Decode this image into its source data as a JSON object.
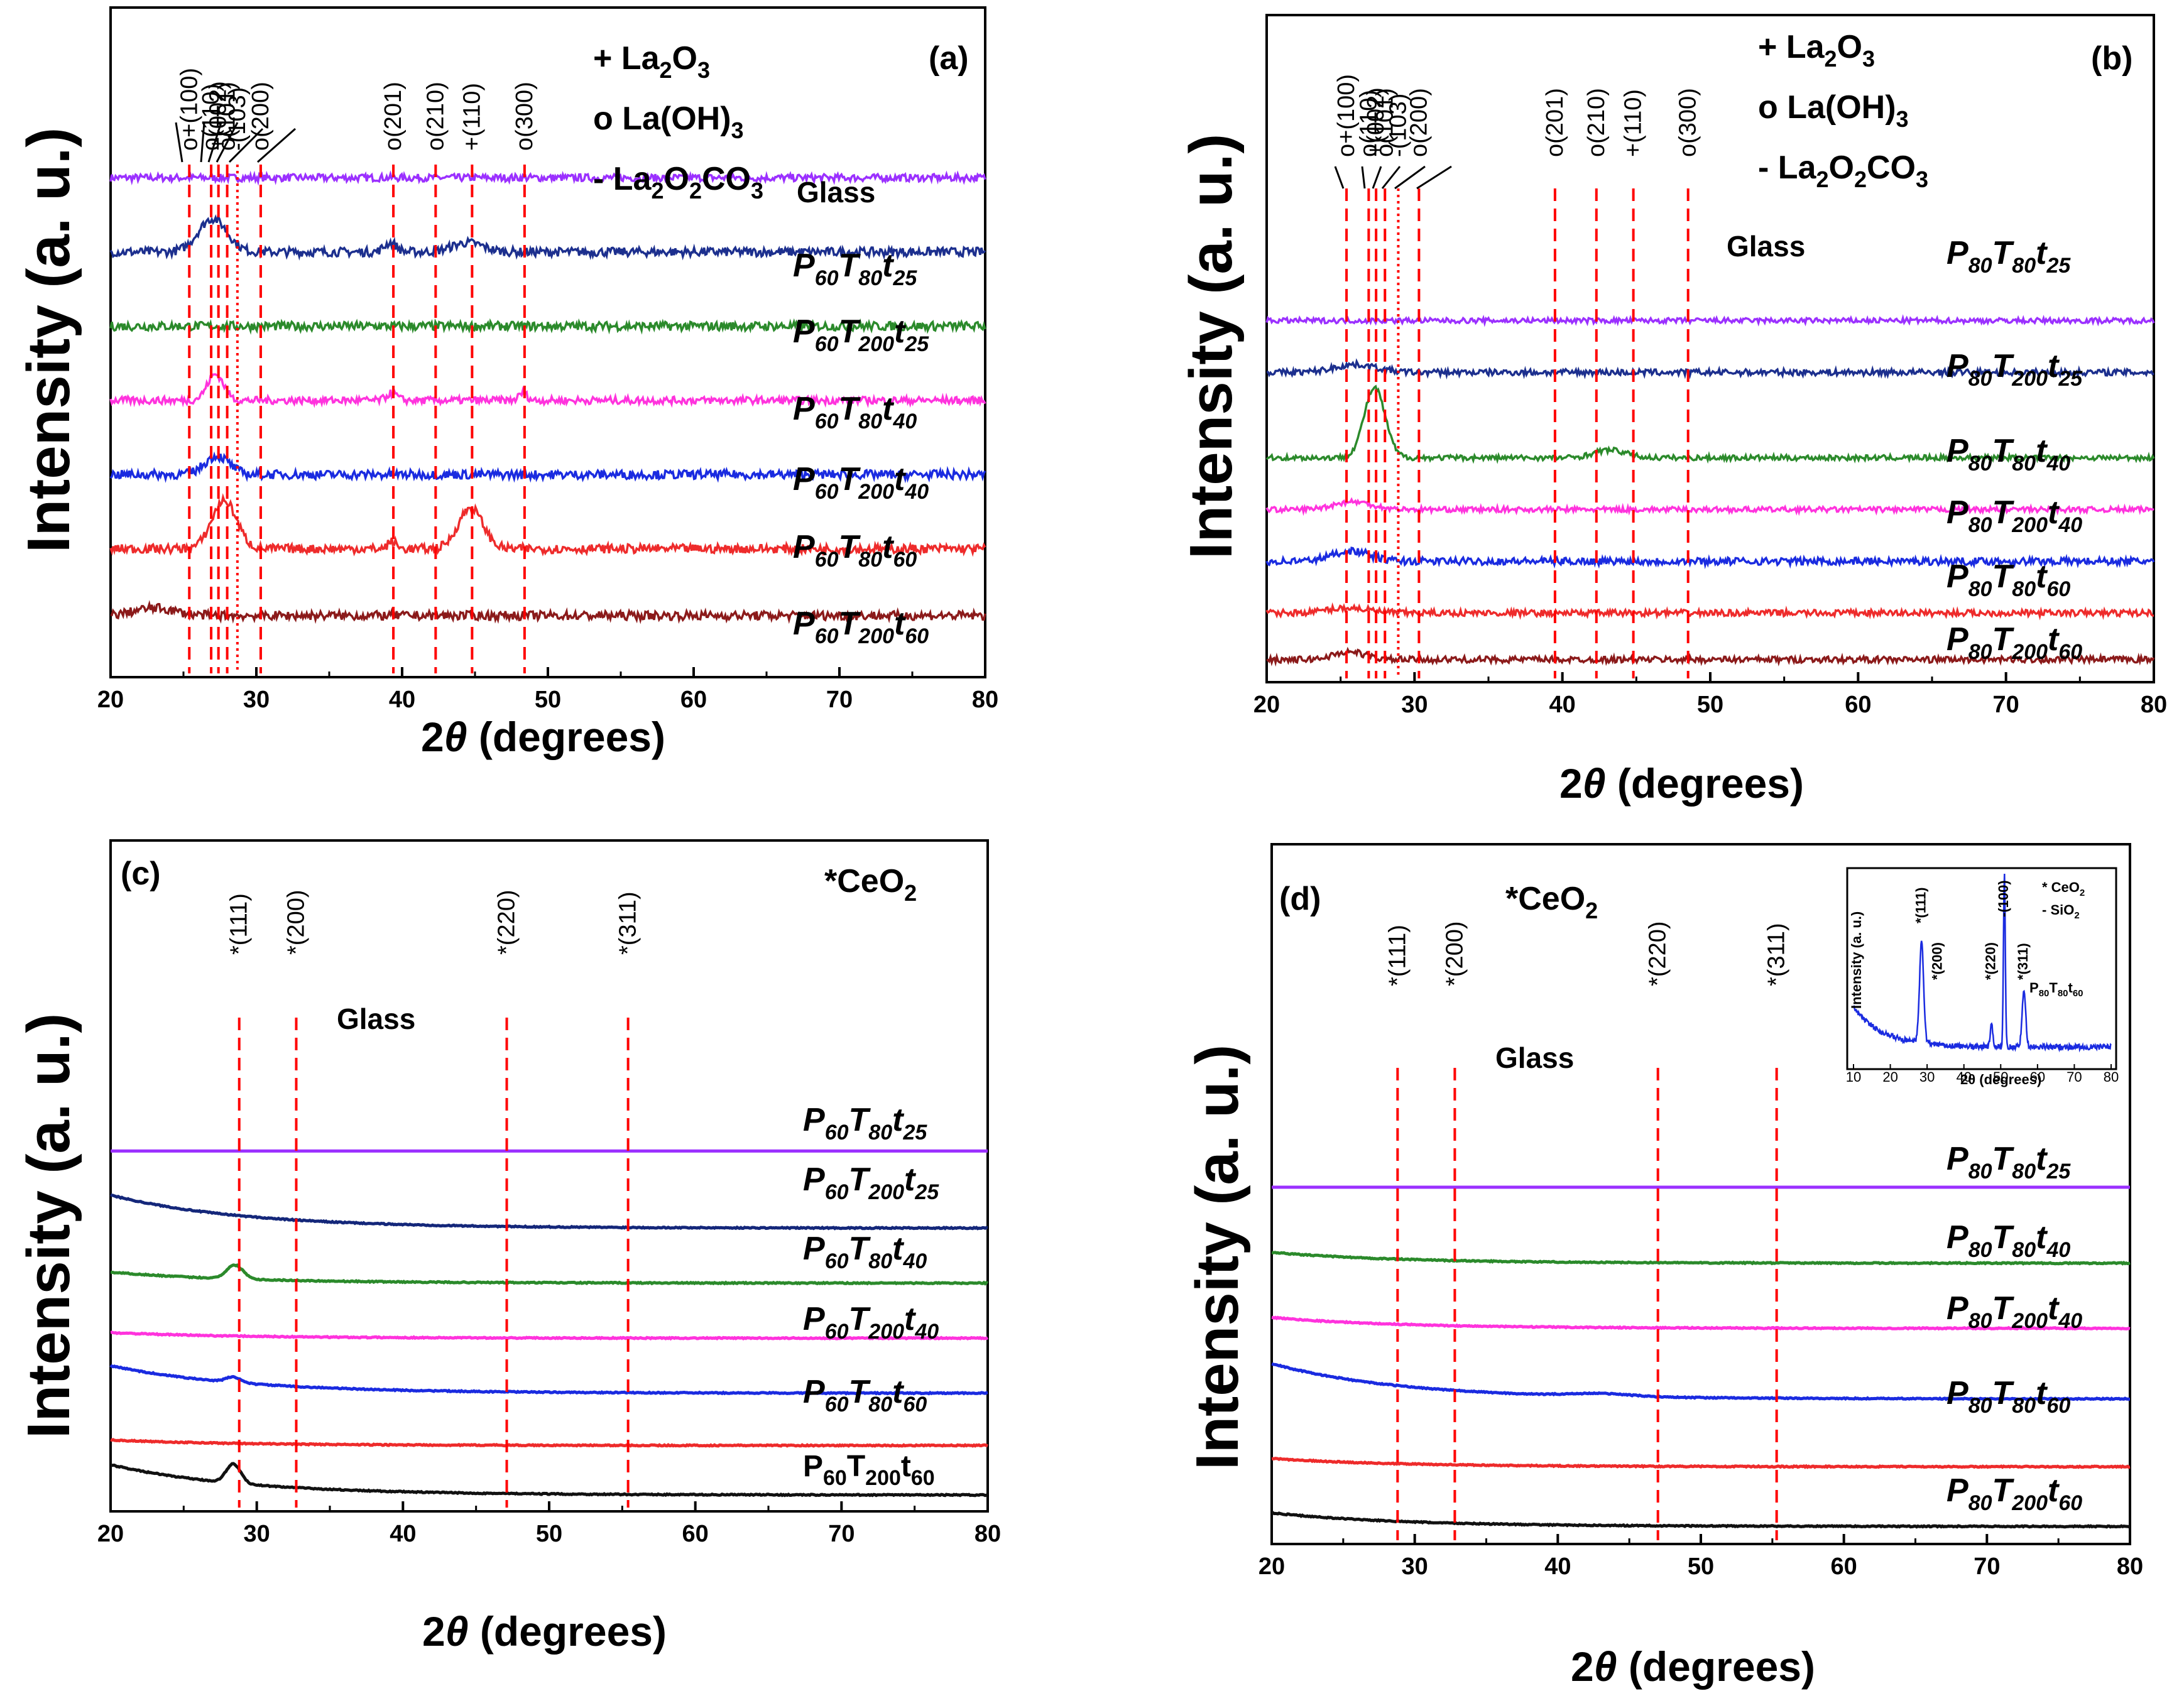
{
  "figure": {
    "y_label": "Intensity (a. u.)",
    "x_label_prefix": "2",
    "x_label_theta": "θ",
    "x_label_suffix": " (degrees)",
    "x_ticks": [
      "20",
      "30",
      "40",
      "50",
      "60",
      "70",
      "80"
    ]
  },
  "chart_data": [
    {
      "id": "a",
      "type": "line",
      "panel_label": "(a)",
      "xlabel": "2θ (degrees)",
      "ylabel": "Intensity (a. u.)",
      "xlim": [
        20,
        80
      ],
      "legend": [
        {
          "sym": "+",
          "text": "La",
          "sub": "2",
          "text2": "O",
          "sub2": "3"
        },
        {
          "sym": "o",
          "text": "La(OH)",
          "sub": "3",
          "text2": "",
          "sub2": ""
        },
        {
          "sym": "-",
          "text": "La",
          "sub": "2",
          "text2": "O",
          "sub2": "2",
          "text3": "CO",
          "sub3": "3"
        }
      ],
      "reference_lines": [
        {
          "x": 25.4,
          "label": "o+(100)",
          "style": "dashed"
        },
        {
          "x": 26.9,
          "label": "o(110)",
          "style": "dashed"
        },
        {
          "x": 27.4,
          "label": "+(002)",
          "style": "dashed"
        },
        {
          "x": 28.0,
          "label": "o(101)",
          "style": "dashed"
        },
        {
          "x": 28.7,
          "label": "-(103)",
          "style": "dotted"
        },
        {
          "x": 30.3,
          "label": "o(200)",
          "style": "dashed"
        },
        {
          "x": 39.4,
          "label": "o(201)",
          "style": "dashed"
        },
        {
          "x": 42.3,
          "label": "o(210)",
          "style": "dashed"
        },
        {
          "x": 44.8,
          "label": "+(110)",
          "style": "dashed"
        },
        {
          "x": 48.4,
          "label": "o(300)",
          "style": "dashed"
        }
      ],
      "series": [
        {
          "name": "Glass",
          "color": "#9b30ff",
          "baseline": 1.0,
          "peaks": [],
          "noise": 0.01,
          "label_parts": [
            "Glass"
          ]
        },
        {
          "name": "P60T80t25",
          "color": "#1c2f8e",
          "baseline": 0.8,
          "peaks": [
            [
              27.0,
              0.09,
              1.4
            ],
            [
              39.2,
              0.025,
              0.6
            ],
            [
              44.5,
              0.025,
              1.5
            ]
          ],
          "noise": 0.012,
          "label_parts": [
            "P",
            "60",
            "T",
            "80",
            "t",
            "25"
          ]
        },
        {
          "name": "P60T200t25",
          "color": "#2b8a2b",
          "baseline": 0.6,
          "peaks": [],
          "noise": 0.012,
          "label_parts": [
            "P",
            "60",
            "T",
            "200",
            "t",
            "25"
          ]
        },
        {
          "name": "P60T80t40",
          "color": "#ff33dd",
          "baseline": 0.4,
          "peaks": [
            [
              27.2,
              0.07,
              0.8
            ],
            [
              39.3,
              0.02,
              0.5
            ],
            [
              48.3,
              0.02,
              0.4
            ]
          ],
          "noise": 0.01,
          "label_parts": [
            "P",
            "60",
            "T",
            "80",
            "t",
            "40"
          ]
        },
        {
          "name": "P60T200t40",
          "color": "#1a2be0",
          "baseline": 0.2,
          "peaks": [
            [
              27.3,
              0.05,
              1.2
            ]
          ],
          "noise": 0.012,
          "label_parts": [
            "P",
            "60",
            "T",
            "200",
            "t",
            "40"
          ]
        },
        {
          "name": "P60T80t60",
          "color": "#ee2b2b",
          "baseline": 0.0,
          "peaks": [
            [
              27.8,
              0.13,
              1.2
            ],
            [
              44.7,
              0.11,
              1.2
            ],
            [
              39.3,
              0.02,
              0.4
            ]
          ],
          "noise": 0.012,
          "label_parts": [
            "P",
            "60",
            "T",
            "80",
            "t",
            "60"
          ]
        },
        {
          "name": "P60T200t60",
          "color": "#8b1a1a",
          "baseline": -0.18,
          "peaks": [
            [
              23.0,
              0.02,
              2.0
            ]
          ],
          "noise": 0.012,
          "label_parts": [
            "P",
            "60",
            "T",
            "200",
            "t",
            "60"
          ]
        }
      ]
    },
    {
      "id": "b",
      "type": "line",
      "panel_label": "(b)",
      "xlabel": "2θ (degrees)",
      "ylabel": "Intensity (a. u.)",
      "xlim": [
        20,
        80
      ],
      "legend": [
        {
          "sym": "+",
          "text": "La",
          "sub": "2",
          "text2": "O",
          "sub2": "3"
        },
        {
          "sym": "o",
          "text": "La(OH)",
          "sub": "3",
          "text2": "",
          "sub2": ""
        },
        {
          "sym": "-",
          "text": "La",
          "sub": "2",
          "text2": "O",
          "sub2": "2",
          "text3": "CO",
          "sub3": "3"
        }
      ],
      "reference_lines": [
        {
          "x": 25.4,
          "label": "o+(100)",
          "style": "dashed"
        },
        {
          "x": 26.9,
          "label": "o(110)",
          "style": "dashed"
        },
        {
          "x": 27.4,
          "label": "+(002)",
          "style": "dashed"
        },
        {
          "x": 28.0,
          "label": "o(101)",
          "style": "dashed"
        },
        {
          "x": 28.9,
          "label": "-(103)",
          "style": "dotted"
        },
        {
          "x": 30.3,
          "label": "o(200)",
          "style": "dashed"
        },
        {
          "x": 39.5,
          "label": "o(201)",
          "style": "dashed"
        },
        {
          "x": 42.3,
          "label": "o(210)",
          "style": "dashed"
        },
        {
          "x": 44.8,
          "label": "+(110)",
          "style": "dashed"
        },
        {
          "x": 48.5,
          "label": "o(300)",
          "style": "dashed"
        }
      ],
      "series": [
        {
          "name": "Glass",
          "color": "#9b30ff",
          "baseline": 1.15,
          "peaks": [],
          "noise": 0.01,
          "label_parts": [
            "Glass"
          ]
        },
        {
          "name": "P80T80t25",
          "color": "#1c2f8e",
          "baseline": 0.95,
          "peaks": [
            [
              26.0,
              0.03,
              2.0
            ]
          ],
          "noise": 0.012,
          "label_parts": [
            "P",
            "80",
            "T",
            "80",
            "t",
            "25"
          ]
        },
        {
          "name": "P80T200t25",
          "color": "#2b8a2b",
          "baseline": 0.62,
          "peaks": [
            [
              27.3,
              0.27,
              1.0
            ],
            [
              43.2,
              0.03,
              1.5
            ]
          ],
          "noise": 0.01,
          "label_parts": [
            "P",
            "80",
            "T",
            "200",
            "t",
            "25"
          ]
        },
        {
          "name": "P80T80t40",
          "color": "#ff33dd",
          "baseline": 0.42,
          "peaks": [
            [
              25.8,
              0.03,
              1.8
            ]
          ],
          "noise": 0.01,
          "label_parts": [
            "P",
            "80",
            "T",
            "80",
            "t",
            "40"
          ]
        },
        {
          "name": "P80T200t40",
          "color": "#1a2be0",
          "baseline": 0.22,
          "peaks": [
            [
              25.7,
              0.04,
              1.8
            ]
          ],
          "noise": 0.014,
          "label_parts": [
            "P",
            "80",
            "T",
            "200",
            "t",
            "40"
          ]
        },
        {
          "name": "P80T80t60",
          "color": "#ee2b2b",
          "baseline": 0.02,
          "peaks": [
            [
              25.5,
              0.02,
              2.0
            ]
          ],
          "noise": 0.012,
          "label_parts": [
            "P",
            "80",
            "T",
            "80",
            "t",
            "60"
          ]
        },
        {
          "name": "P80T200t60",
          "color": "#8b1a1a",
          "baseline": -0.16,
          "peaks": [
            [
              25.6,
              0.03,
              1.5
            ]
          ],
          "noise": 0.012,
          "label_parts": [
            "P",
            "80",
            "T",
            "200",
            "t",
            "60"
          ]
        }
      ]
    },
    {
      "id": "c",
      "type": "line",
      "panel_label": "(c)",
      "xlabel": "2θ (degrees)",
      "ylabel": "Intensity (a. u.)",
      "xlim": [
        20,
        80
      ],
      "phase_title": {
        "prefix": "*CeO",
        "sub": "2"
      },
      "reference_lines": [
        {
          "x": 28.8,
          "label": "*(111)",
          "style": "dashed"
        },
        {
          "x": 32.7,
          "label": "*(200)",
          "style": "dashed"
        },
        {
          "x": 47.1,
          "label": "*(220)",
          "style": "dashed"
        },
        {
          "x": 55.4,
          "label": "*(311)",
          "style": "dashed"
        }
      ],
      "series": [
        {
          "name": "Glass",
          "color": "#9b30ff",
          "baseline": 1.1,
          "decay": 0,
          "peaks": [],
          "noise": 0.0,
          "label_parts": [
            "Glass"
          ]
        },
        {
          "name": "P60T80t25",
          "color": "#14277a",
          "baseline": 0.82,
          "decay": 0.12,
          "peaks": [],
          "noise": 0.002,
          "label_parts": [
            "P",
            "60",
            "T",
            "80",
            "t",
            "25"
          ]
        },
        {
          "name": "P60T200t25",
          "color": "#2b8a2b",
          "baseline": 0.62,
          "decay": 0.04,
          "peaks": [
            [
              28.5,
              0.05,
              0.8
            ]
          ],
          "noise": 0.002,
          "label_parts": [
            "P",
            "60",
            "T",
            "200",
            "t",
            "25"
          ]
        },
        {
          "name": "P60T80t40",
          "color": "#ff33dd",
          "baseline": 0.42,
          "decay": 0.02,
          "peaks": [],
          "noise": 0.002,
          "label_parts": [
            "P",
            "60",
            "T",
            "80",
            "t",
            "40"
          ]
        },
        {
          "name": "P60T200t40",
          "color": "#1a2be0",
          "baseline": 0.22,
          "decay": 0.1,
          "peaks": [
            [
              28.4,
              0.02,
              0.7
            ]
          ],
          "noise": 0.002,
          "label_parts": [
            "P",
            "60",
            "T",
            "200",
            "t",
            "40"
          ]
        },
        {
          "name": "P60T80t60",
          "color": "#ee2b2b",
          "baseline": 0.03,
          "decay": 0.02,
          "peaks": [],
          "noise": 0.002,
          "label_parts": [
            "P",
            "60",
            "T",
            "80",
            "t",
            "60"
          ]
        },
        {
          "name": "P60T200t60",
          "color": "#111111",
          "baseline": -0.15,
          "decay": 0.11,
          "peaks": [
            [
              28.4,
              0.07,
              0.7
            ]
          ],
          "noise": 0.002,
          "label_parts": [
            "P",
            "60",
            "T",
            "200",
            "t",
            "60"
          ],
          "upright": true
        }
      ]
    },
    {
      "id": "d",
      "type": "line",
      "panel_label": "(d)",
      "xlabel": "2θ (degrees)",
      "ylabel": "Intensity (a. u.)",
      "xlim": [
        20,
        80
      ],
      "phase_title": {
        "prefix": "*CeO",
        "sub": "2"
      },
      "reference_lines": [
        {
          "x": 28.8,
          "label": "*(111)",
          "style": "dashed"
        },
        {
          "x": 32.8,
          "label": "*(200)",
          "style": "dashed"
        },
        {
          "x": 47.0,
          "label": "*(220)",
          "style": "dashed"
        },
        {
          "x": 55.3,
          "label": "*(311)",
          "style": "dashed"
        }
      ],
      "series": [
        {
          "name": "Glass",
          "color": "#9b30ff",
          "baseline": 1.1,
          "decay": 0,
          "peaks": [],
          "noise": 0.0,
          "label_parts": [
            "Glass"
          ]
        },
        {
          "name": "P80T80t25",
          "color": "#2b8a2b",
          "baseline": 0.82,
          "decay": 0.04,
          "peaks": [],
          "noise": 0.002,
          "label_parts": [
            "P",
            "80",
            "T",
            "80",
            "t",
            "25"
          ]
        },
        {
          "name": "P80T80t40",
          "color": "#ff33dd",
          "baseline": 0.58,
          "decay": 0.04,
          "peaks": [],
          "noise": 0.002,
          "label_parts": [
            "P",
            "80",
            "T",
            "80",
            "t",
            "40"
          ]
        },
        {
          "name": "P80T200t40",
          "color": "#1a2be0",
          "baseline": 0.32,
          "decay": 0.13,
          "peaks": [
            [
              43.0,
              0.01,
              3.0
            ]
          ],
          "noise": 0.002,
          "label_parts": [
            "P",
            "80",
            "T",
            "200",
            "t",
            "40"
          ]
        },
        {
          "name": "P80T80t60",
          "color": "#ee2b2b",
          "baseline": 0.07,
          "decay": 0.03,
          "peaks": [],
          "noise": 0.002,
          "label_parts": [
            "P",
            "80",
            "T",
            "80",
            "t",
            "60"
          ]
        },
        {
          "name": "P80T200t60",
          "color": "#111111",
          "baseline": -0.15,
          "decay": 0.05,
          "peaks": [],
          "noise": 0.002,
          "label_parts": [
            "P",
            "80",
            "T",
            "200",
            "t",
            "60"
          ]
        }
      ],
      "inset": {
        "type": "line",
        "sample": {
          "p": "P",
          "p_sub": "80",
          "t": "T",
          "t_sub": "80",
          "tt": "t",
          "tt_sub": "60"
        },
        "xlabel": "2θ (degrees)",
        "ylabel": "Intensity (a. u.)",
        "xlim": [
          10,
          80
        ],
        "x_ticks": [
          "10",
          "20",
          "30",
          "40",
          "50",
          "60",
          "70",
          "80"
        ],
        "legend": [
          {
            "text": "* CeO",
            "sub": "2"
          },
          {
            "text": "- SiO",
            "sub": "2"
          }
        ],
        "peak_labels": [
          {
            "x": 28.5,
            "label": "*(111)"
          },
          {
            "x": 33.0,
            "label": "*(200)"
          },
          {
            "x": 47.5,
            "label": "*(220)"
          },
          {
            "x": 51.0,
            "label": "-(100)"
          },
          {
            "x": 56.3,
            "label": "*(311)"
          }
        ],
        "peaks": [
          [
            28.5,
            0.55,
            0.8
          ],
          [
            47.5,
            0.12,
            0.5
          ],
          [
            51.0,
            0.95,
            0.35
          ],
          [
            56.3,
            0.3,
            0.7
          ]
        ]
      }
    }
  ]
}
